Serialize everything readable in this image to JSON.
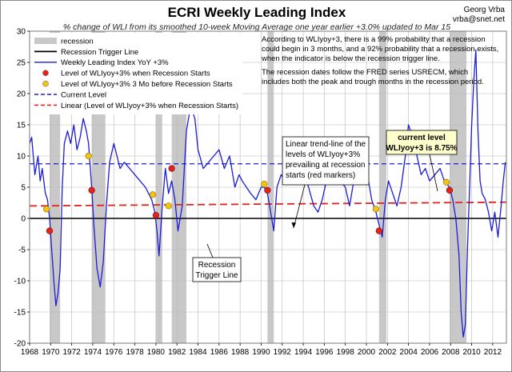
{
  "chart_data": {
    "type": "line",
    "title": "ECRI Weekly Leading Index",
    "subtitle": "% change of WLI from its smoothed 10-week Moving Average one year earlier +3.0% updated to Mar 15",
    "author_name": "Georg Vrba",
    "author_email": "vrba@snet.net",
    "xlim": [
      1968,
      2013.3
    ],
    "ylim": [
      -20,
      30
    ],
    "x_ticks": [
      1968,
      1970,
      1972,
      1974,
      1976,
      1978,
      1980,
      1982,
      1984,
      1986,
      1988,
      1990,
      1992,
      1994,
      1996,
      1998,
      2000,
      2002,
      2004,
      2006,
      2008,
      2010,
      2012
    ],
    "y_ticks": [
      -20,
      -15,
      -10,
      -5,
      0,
      5,
      10,
      15,
      20,
      25,
      30
    ],
    "grid": true,
    "legend_position": "top-left",
    "legend": [
      {
        "label": "recession",
        "kind": "band",
        "color": "#c8c8c8"
      },
      {
        "label": "Recession Trigger Line",
        "kind": "line",
        "color": "#000000"
      },
      {
        "label": "Weekly Leading Index YoY +3%",
        "kind": "line",
        "color": "#1c1cd6"
      },
      {
        "label": "Level of WLIyoy+3% when Recession Starts",
        "kind": "marker",
        "color": "#e3231c"
      },
      {
        "label": "Level of WLIyoy+3% 3 Mo before Recession Starts",
        "kind": "marker",
        "color": "#f2c515"
      },
      {
        "label": "Current Level",
        "kind": "dashed",
        "color": "#1c1cd6"
      },
      {
        "label": "Linear (Level of WLIyoy+3% when Recession Starts)",
        "kind": "dashed",
        "color": "#e3231c"
      }
    ],
    "notes": [
      "According to WLIyoy+3, there is a 99% probability that a recession",
      "could begin in 3 months, and a 92% probability that a recession exists,",
      "when the indicator is below the recession trigger line.",
      "The recession dates follow the FRED series USRECM, which",
      "includes both the peak and trough months in the recession period."
    ],
    "annotations": {
      "trend": [
        "Linear trend-line of the",
        "levels of WLIyoy+3%",
        "prevailing at recession",
        "starts (red markers)"
      ],
      "trigger": [
        "Recession",
        "Trigger Line"
      ],
      "current_line1": "current level",
      "current_line2": "WLIyoy+3 is 8.75%"
    },
    "recessions": [
      [
        1969.9,
        1970.9
      ],
      [
        1973.9,
        1975.2
      ],
      [
        1980.0,
        1980.6
      ],
      [
        1981.5,
        1982.9
      ],
      [
        1990.6,
        1991.2
      ],
      [
        2001.2,
        2001.9
      ],
      [
        2007.9,
        2009.5
      ]
    ],
    "trigger_level": 0,
    "current_level": 8.75,
    "trend_line": {
      "x": [
        1968,
        2013.3
      ],
      "y": [
        2.0,
        2.6
      ]
    },
    "recession_start_markers": {
      "x": [
        1969.9,
        1973.9,
        1980.0,
        1981.5,
        1990.6,
        2001.2,
        2007.9
      ],
      "y": [
        -2.0,
        4.5,
        0.5,
        8.0,
        4.5,
        -2.0,
        4.5
      ]
    },
    "pre_recession_markers": {
      "x": [
        1969.6,
        1973.6,
        1979.7,
        1981.2,
        1990.3,
        2000.9,
        2007.6
      ],
      "y": [
        1.5,
        10.0,
        3.8,
        2.0,
        5.5,
        1.5,
        5.8
      ]
    },
    "series": [
      {
        "name": "Weekly Leading Index YoY +3%",
        "x": [
          1968.0,
          1968.2,
          1968.5,
          1968.8,
          1969.0,
          1969.2,
          1969.5,
          1969.7,
          1969.9,
          1970.1,
          1970.3,
          1970.5,
          1970.7,
          1970.9,
          1971.1,
          1971.3,
          1971.6,
          1971.9,
          1972.2,
          1972.5,
          1972.8,
          1973.1,
          1973.4,
          1973.6,
          1973.9,
          1974.1,
          1974.4,
          1974.7,
          1975.0,
          1975.3,
          1975.6,
          1976.0,
          1976.3,
          1976.6,
          1977.0,
          1977.5,
          1978.0,
          1978.5,
          1979.0,
          1979.3,
          1979.6,
          1979.9,
          1980.1,
          1980.3,
          1980.6,
          1980.9,
          1981.2,
          1981.5,
          1981.8,
          1982.1,
          1982.5,
          1982.9,
          1983.3,
          1983.7,
          1984.0,
          1984.5,
          1985.0,
          1985.5,
          1986.0,
          1986.5,
          1987.0,
          1987.5,
          1987.9,
          1988.2,
          1988.6,
          1989.0,
          1989.5,
          1990.0,
          1990.3,
          1990.6,
          1990.9,
          1991.2,
          1991.5,
          1991.9,
          1992.3,
          1992.7,
          1993.0,
          1993.4,
          1993.8,
          1994.1,
          1994.5,
          1995.0,
          1995.4,
          1995.8,
          1996.2,
          1996.6,
          1997.0,
          1997.5,
          1998.0,
          1998.4,
          1998.8,
          1999.2,
          1999.7,
          2000.1,
          2000.5,
          2000.9,
          2001.2,
          2001.5,
          2001.8,
          2002.1,
          2002.5,
          2002.9,
          2003.3,
          2003.7,
          2004.0,
          2004.4,
          2004.8,
          2005.2,
          2005.6,
          2006.0,
          2006.5,
          2007.0,
          2007.4,
          2007.9,
          2008.2,
          2008.5,
          2008.8,
          2009.0,
          2009.2,
          2009.4,
          2009.6,
          2009.8,
          2010.0,
          2010.2,
          2010.4,
          2010.6,
          2010.8,
          2011.0,
          2011.3,
          2011.6,
          2011.9,
          2012.2,
          2012.5,
          2012.8,
          2013.0,
          2013.2
        ],
        "y": [
          12,
          13,
          7,
          10,
          6,
          8,
          4,
          3,
          0,
          -5,
          -10,
          -14,
          -12,
          -8,
          5,
          12,
          14,
          12,
          15,
          11,
          13,
          16,
          14,
          12,
          5,
          -1,
          -8,
          -11,
          -7,
          2,
          9,
          12,
          10,
          8,
          9,
          8,
          7,
          6,
          5,
          4,
          3,
          1,
          -2,
          -6,
          2,
          8,
          4,
          6,
          3,
          -2,
          2,
          14,
          18,
          16,
          11,
          8,
          9,
          10,
          11,
          8,
          10,
          5,
          7,
          6,
          5,
          4,
          3,
          5,
          5,
          4,
          1,
          -2,
          5,
          7,
          6,
          9,
          10,
          8,
          9,
          7,
          5,
          2,
          1,
          3,
          6,
          8,
          7,
          6,
          5,
          2,
          6,
          8,
          6,
          7,
          3,
          1,
          -1,
          -3,
          3,
          6,
          4,
          2,
          5,
          10,
          15,
          13,
          10,
          7,
          8,
          6,
          7,
          8,
          6,
          5,
          3,
          0,
          -6,
          -15,
          -19,
          -17,
          -5,
          5,
          15,
          22,
          27,
          14,
          6,
          4,
          3,
          1,
          -2,
          1,
          -3,
          2,
          6,
          9
        ]
      }
    ]
  }
}
